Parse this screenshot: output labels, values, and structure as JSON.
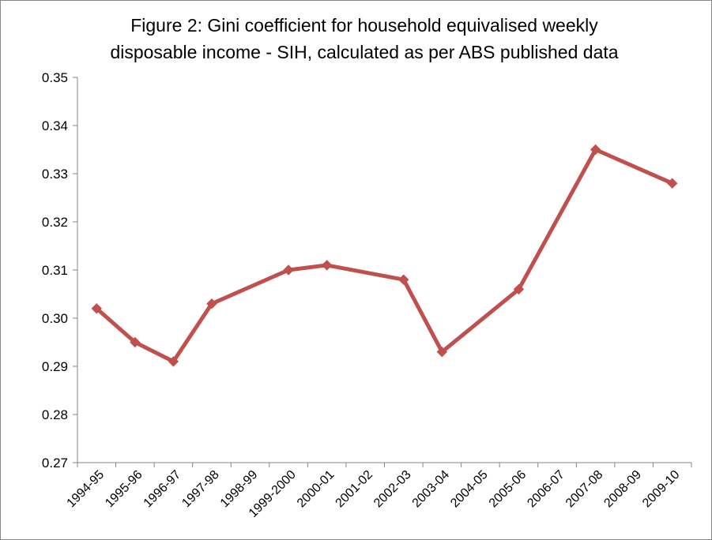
{
  "chart_data": {
    "type": "line",
    "title_lines": [
      "Figure 2: Gini coefficient for household equivalised weekly",
      "disposable income - SIH, calculated as per ABS published data"
    ],
    "xlabel": "",
    "ylabel": "",
    "ylim": [
      0.27,
      0.35
    ],
    "y_ticks": [
      "0.27",
      "0.28",
      "0.29",
      "0.30",
      "0.31",
      "0.32",
      "0.33",
      "0.34",
      "0.35"
    ],
    "categories": [
      "1994-95",
      "1995-96",
      "1996-97",
      "1997-98",
      "1998-99",
      "1999-2000",
      "2000-01",
      "2001-02",
      "2002-03",
      "2003-04",
      "2004-05",
      "2005-06",
      "2006-07",
      "2007-08",
      "2008-09",
      "2009-10"
    ],
    "series": [
      {
        "color": "#C0504D",
        "marker": "diamond",
        "values": [
          0.302,
          0.295,
          0.291,
          0.303,
          null,
          0.31,
          0.311,
          null,
          0.308,
          0.293,
          null,
          0.306,
          null,
          0.335,
          null,
          0.328
        ]
      }
    ],
    "grid": false,
    "legend": "none"
  }
}
